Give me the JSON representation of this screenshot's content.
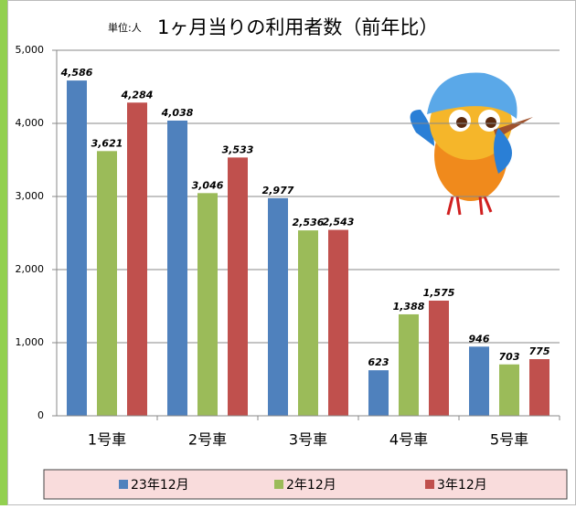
{
  "chart_data": {
    "type": "bar",
    "title": "1ヶ月当りの利用者数（前年比）",
    "unit_label": "単位:人",
    "categories": [
      "1号車",
      "2号車",
      "3号車",
      "4号車",
      "5号車"
    ],
    "series": [
      {
        "name": "23年12月",
        "color": "#4f81bd",
        "values": [
          4586,
          4038,
          2977,
          623,
          946
        ],
        "value_labels": [
          "4,586",
          "4,038",
          "2,977",
          "623",
          "946"
        ]
      },
      {
        "name": "2年12月",
        "color": "#9bbb59",
        "values": [
          3621,
          3046,
          2536,
          1388,
          703
        ],
        "value_labels": [
          "3,621",
          "3,046",
          "2,536",
          "1,388",
          "703"
        ]
      },
      {
        "name": "3年12月",
        "color": "#c0504d",
        "values": [
          4284,
          3533,
          2543,
          1575,
          775
        ],
        "value_labels": [
          "4,284",
          "3,533",
          "2,543",
          "1,575",
          "775"
        ]
      }
    ],
    "ylim": [
      0,
      5000
    ],
    "yticks": [
      0,
      {
        "value": 1000,
        "label": "1,000"
      },
      {
        "value": 2000,
        "label": "2,000"
      },
      {
        "value": 3000,
        "label": "3,000"
      },
      {
        "value": 4000,
        "label": "4,000"
      },
      {
        "value": 5000,
        "label": "5,000"
      }
    ],
    "grid": true,
    "legend": "bottom"
  }
}
